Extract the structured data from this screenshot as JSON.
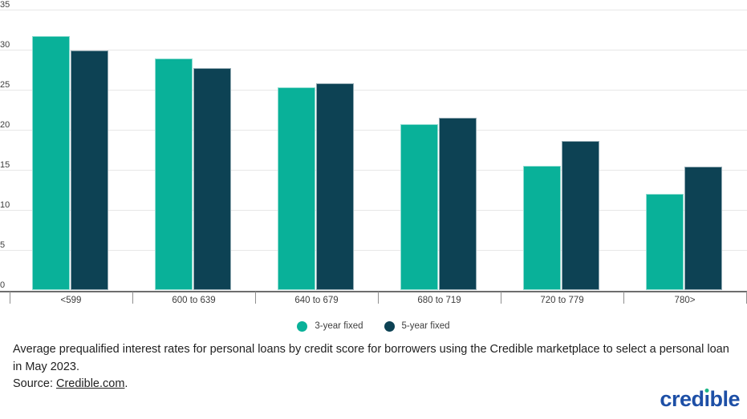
{
  "chart_data": {
    "type": "bar",
    "title": "",
    "categories": [
      "<599",
      "600 to 639",
      "640 to 679",
      "680 to 719",
      "720 to 779",
      "780>"
    ],
    "series": [
      {
        "name": "3-year fixed",
        "color": "#09B199",
        "values": [
          31.7,
          28.9,
          25.3,
          20.7,
          15.5,
          12.0
        ]
      },
      {
        "name": "5-year fixed",
        "color": "#0D4254",
        "values": [
          29.9,
          27.7,
          25.8,
          21.5,
          18.6,
          15.4
        ]
      }
    ],
    "xlabel": "",
    "ylabel": "",
    "ylim": [
      0,
      35
    ],
    "yticks": [
      0,
      5,
      10,
      15,
      20,
      25,
      30,
      35
    ],
    "grid": true,
    "legend_position": "bottom"
  },
  "caption": {
    "line1": "Average prequalified interest rates for personal loans by credit score for borrowers using the Credible marketplace to select a personal loan in May 2023.",
    "source_label": "Source: ",
    "source_link": "Credible.com",
    "source_suffix": "."
  },
  "logo": {
    "text": "credible",
    "before_i": "cred",
    "dotless_i": "ı",
    "after_i": "ble"
  }
}
